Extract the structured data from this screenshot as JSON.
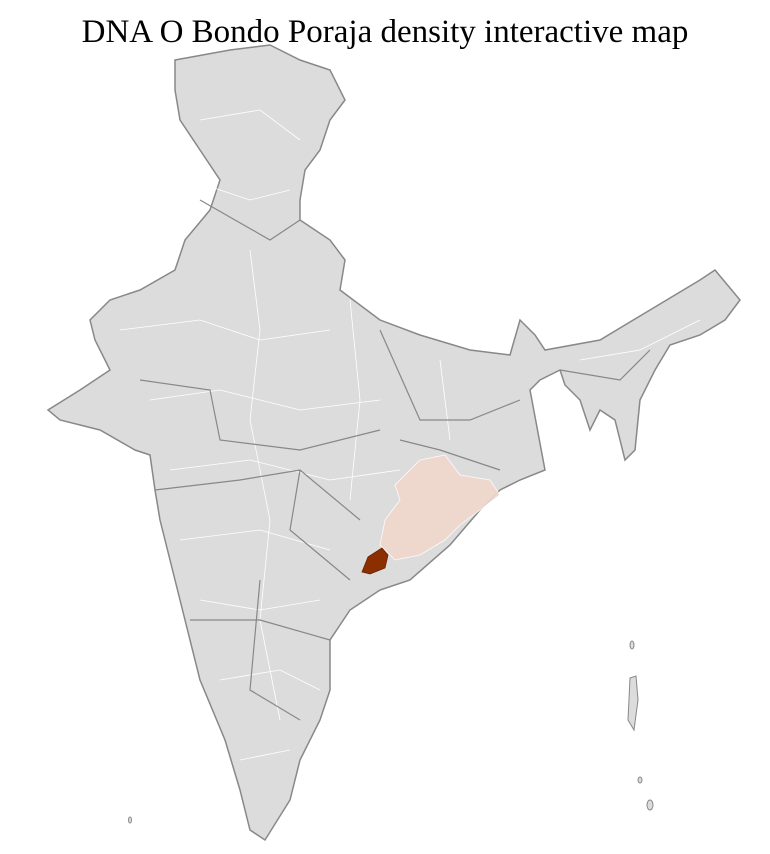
{
  "title": "DNA O Bondo Poraja density interactive map",
  "map": {
    "region": "India",
    "base_color": "#dcdcdc",
    "border_color": "#888888",
    "district_line_color": "#ffffff",
    "low_density_color": "#f0d8cc",
    "high_density_color": "#8b2e00",
    "highlighted_regions": [
      {
        "name": "Odisha districts",
        "level": "low"
      },
      {
        "name": "Southern Odisha district",
        "level": "high"
      }
    ]
  }
}
